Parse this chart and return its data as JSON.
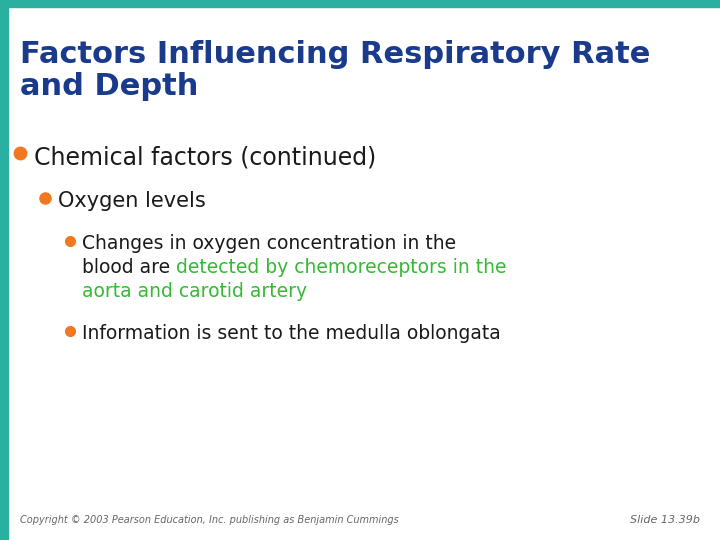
{
  "title_line1": "Factors Influencing Respiratory Rate",
  "title_line2": "and Depth",
  "title_color": "#1a3a8c",
  "background_color": "#ffffff",
  "top_bar_color": "#2ab0a0",
  "left_bar_color": "#2ab0a0",
  "bullet_color_orange": "#f07820",
  "text_color_dark": "#1a1a1a",
  "text_color_green": "#33bb33",
  "bullet1_text": "Chemical factors (continued)",
  "bullet2_text": "Oxygen levels",
  "bullet3b_text": "Information is sent to the medulla oblongata",
  "footer_text": "Copyright © 2003 Pearson Education, Inc. publishing as Benjamin Cummings",
  "slide_number": "Slide 13.39b",
  "footer_color": "#666666",
  "slide_num_color": "#666666"
}
